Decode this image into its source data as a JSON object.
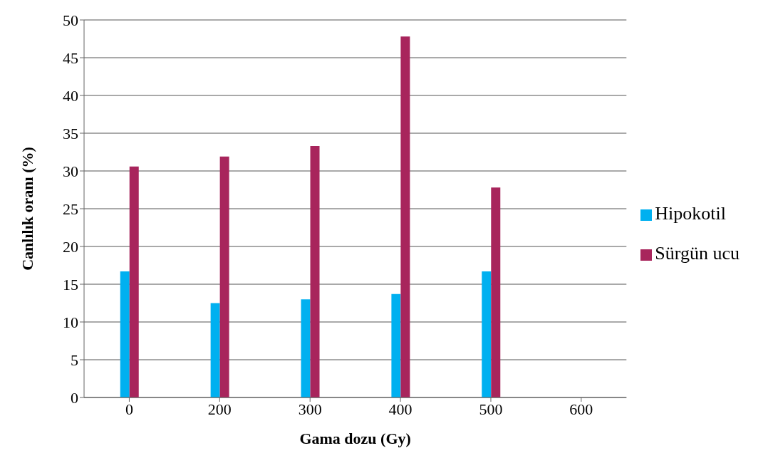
{
  "chart_data": {
    "type": "bar",
    "xlabel": "Gama dozu (Gy)",
    "ylabel": "Canlılık oranı (%)",
    "categories": [
      "0",
      "200",
      "300",
      "400",
      "500",
      "600"
    ],
    "series": [
      {
        "name": "Hipokotil",
        "color": "#00b0f0",
        "values": [
          16.7,
          12.5,
          13,
          13.7,
          16.7,
          0
        ]
      },
      {
        "name": "Sürgün ucu",
        "color": "#a8255c",
        "values": [
          30.6,
          31.9,
          33.3,
          47.8,
          27.8,
          0
        ]
      }
    ],
    "ylim": [
      0,
      50
    ],
    "yticks": [
      0,
      5,
      10,
      15,
      20,
      25,
      30,
      35,
      40,
      45,
      50
    ],
    "grid": "y",
    "legend": "right"
  }
}
